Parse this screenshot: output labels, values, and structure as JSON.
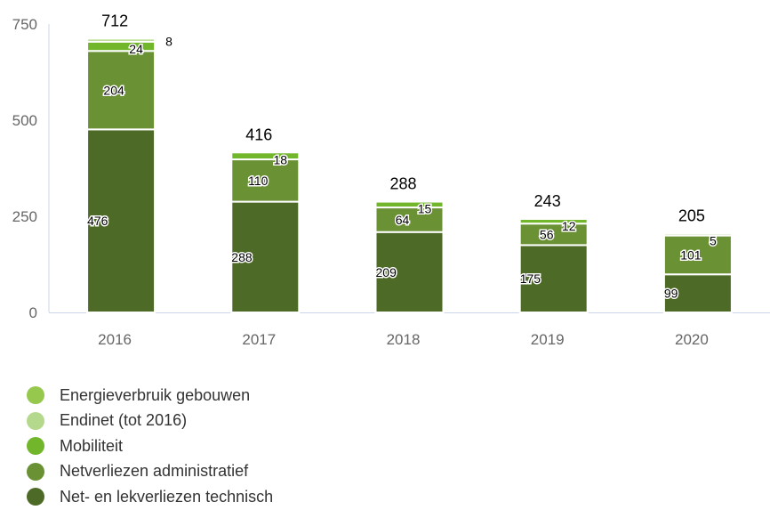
{
  "chart_data": {
    "type": "bar",
    "stacked": true,
    "categories": [
      "2016",
      "2017",
      "2018",
      "2019",
      "2020"
    ],
    "ylim": [
      0,
      750
    ],
    "yticks": [
      0,
      250,
      500,
      750
    ],
    "grid": false,
    "legend_position": "bottom-left",
    "totals": [
      712,
      416,
      288,
      243,
      205
    ],
    "series": [
      {
        "name": "Net- en lekverliezen technisch",
        "color": "#4d6b26",
        "values": [
          476,
          288,
          209,
          175,
          99
        ]
      },
      {
        "name": "Netverliezen administratief",
        "color": "#6a9134",
        "values": [
          204,
          110,
          64,
          56,
          101
        ]
      },
      {
        "name": "Mobiliteit",
        "color": "#72b62c",
        "values": [
          24,
          18,
          15,
          12,
          5
        ]
      },
      {
        "name": "Endinet (tot 2016)",
        "color": "#b5d98c",
        "values": [
          8,
          null,
          null,
          null,
          null
        ]
      },
      {
        "name": "Energieverbruik gebouwen",
        "color": "#96c84e",
        "values": [
          null,
          null,
          null,
          null,
          null
        ]
      }
    ]
  },
  "legend": {
    "items": [
      {
        "label": "Energieverbruik gebouwen",
        "color": "#96c84e"
      },
      {
        "label": "Endinet (tot 2016)",
        "color": "#b5d98c"
      },
      {
        "label": "Mobiliteit",
        "color": "#72b62c"
      },
      {
        "label": "Netverliezen administratief",
        "color": "#6a9134"
      },
      {
        "label": "Net- en lekverliezen technisch",
        "color": "#4d6b26"
      }
    ]
  }
}
